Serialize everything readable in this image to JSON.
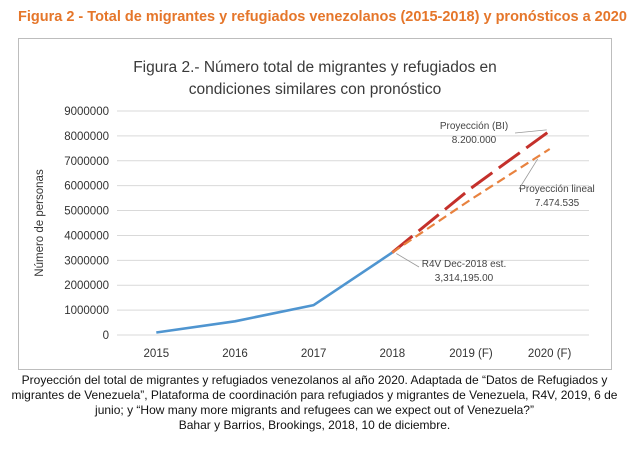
{
  "figure_title": "Figura 2 - Total de migrantes y refugiados venezolanos (2015-2018) y pronósticos a 2020",
  "caption": [
    "Proyección del total de migrantes y refugiados venezolanos al año 2020. Adaptada de “Datos de Refugiados y",
    "migrantes de Venezuela”, Plataforma de coordinación para refugiados y migrantes de Venezuela, R4V, 2019, 6 de",
    "junio; y “How many more migrants and refugees can we expect out of Venezuela?”",
    "Bahar y Barrios, Brookings, 2018, 10 de diciembre."
  ],
  "colors": {
    "title_orange": "#e5762a",
    "historical": "#4f95d0",
    "projection_bi": "#c4302b",
    "projection_lineal": "#e8823f",
    "grid": "#d9d9d9"
  },
  "chart_data": {
    "type": "line",
    "title_lines": [
      "Figura 2.- Número total de migrantes y refugiados en",
      "condiciones similares con pronóstico"
    ],
    "xlabel": "",
    "ylabel": "Número de personas",
    "categories": [
      "2015",
      "2016",
      "2017",
      "2018",
      "2019 (F)",
      "2020 (F)"
    ],
    "yticks": [
      "0",
      "1000000",
      "2000000",
      "3000000",
      "4000000",
      "5000000",
      "6000000",
      "7000000",
      "8000000",
      "9000000"
    ],
    "ylim": [
      0,
      9000000
    ],
    "grid": true,
    "series": [
      {
        "key": "historical",
        "values": [
          100000,
          550000,
          1200000,
          3314195,
          null,
          null
        ],
        "style": "solid"
      },
      {
        "key": "projection_bi",
        "values": [
          null,
          null,
          null,
          3314195,
          5900000,
          8200000
        ],
        "style": "dashed"
      },
      {
        "key": "projection_lineal",
        "values": [
          null,
          null,
          null,
          3314195,
          5450000,
          7474535
        ],
        "style": "dashed"
      }
    ],
    "annotations": [
      {
        "key": "bi",
        "lines": [
          "Proyección (BI)",
          "8.200.000"
        ]
      },
      {
        "key": "lineal",
        "lines": [
          "Proyección lineal",
          "7.474.535"
        ]
      },
      {
        "key": "r4v",
        "lines": [
          "R4V Dec-2018 est.",
          "3,314,195.00"
        ]
      }
    ]
  }
}
